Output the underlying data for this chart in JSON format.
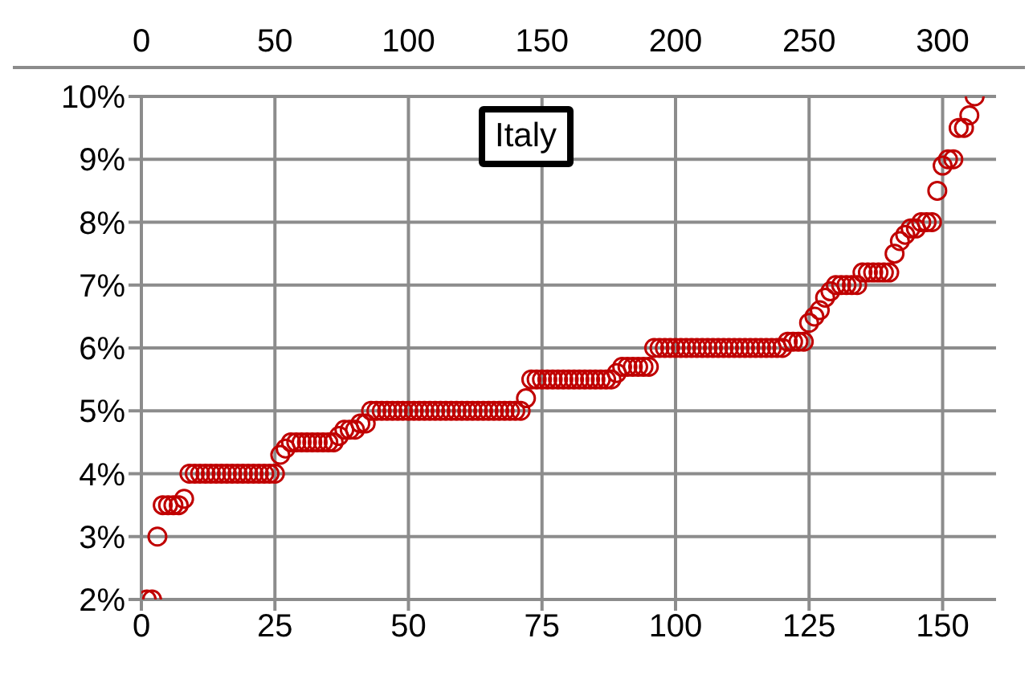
{
  "chart_data": {
    "type": "scatter",
    "title": "Italy",
    "x": [
      1,
      2,
      3,
      4,
      5,
      6,
      7,
      8,
      9,
      10,
      11,
      12,
      13,
      14,
      15,
      16,
      17,
      18,
      19,
      20,
      21,
      22,
      23,
      24,
      25,
      26,
      27,
      28,
      29,
      30,
      31,
      32,
      33,
      34,
      35,
      36,
      37,
      38,
      39,
      40,
      41,
      42,
      43,
      44,
      45,
      46,
      47,
      48,
      49,
      50,
      51,
      52,
      53,
      54,
      55,
      56,
      57,
      58,
      59,
      60,
      61,
      62,
      63,
      64,
      65,
      66,
      67,
      68,
      69,
      70,
      71,
      72,
      73,
      74,
      75,
      76,
      77,
      78,
      79,
      80,
      81,
      82,
      83,
      84,
      85,
      86,
      87,
      88,
      89,
      90,
      91,
      92,
      93,
      94,
      95,
      96,
      97,
      98,
      99,
      100,
      101,
      102,
      103,
      104,
      105,
      106,
      107,
      108,
      109,
      110,
      111,
      112,
      113,
      114,
      115,
      116,
      117,
      118,
      119,
      120,
      121,
      122,
      123,
      124,
      125,
      126,
      127,
      128,
      129,
      130,
      131,
      132,
      133,
      134,
      135,
      136,
      137,
      138,
      139,
      140,
      141,
      142,
      143,
      144,
      145,
      146,
      147,
      148,
      149,
      150,
      151,
      152,
      153,
      154,
      155,
      156
    ],
    "series": [
      {
        "color": "#c00000",
        "values": [
          2,
          2,
          3,
          3.5,
          3.5,
          3.5,
          3.5,
          3.6,
          4,
          4,
          4,
          4,
          4,
          4,
          4,
          4,
          4,
          4,
          4,
          4,
          4,
          4,
          4,
          4,
          4,
          4.3,
          4.4,
          4.5,
          4.5,
          4.5,
          4.5,
          4.5,
          4.5,
          4.5,
          4.5,
          4.5,
          4.6,
          4.7,
          4.7,
          4.7,
          4.8,
          4.8,
          5,
          5,
          5,
          5,
          5,
          5,
          5,
          5,
          5,
          5,
          5,
          5,
          5,
          5,
          5,
          5,
          5,
          5,
          5,
          5,
          5,
          5,
          5,
          5,
          5,
          5,
          5,
          5,
          5,
          5.2,
          5.5,
          5.5,
          5.5,
          5.5,
          5.5,
          5.5,
          5.5,
          5.5,
          5.5,
          5.5,
          5.5,
          5.5,
          5.5,
          5.5,
          5.5,
          5.5,
          5.6,
          5.7,
          5.7,
          5.7,
          5.7,
          5.7,
          5.7,
          6,
          6,
          6,
          6,
          6,
          6,
          6,
          6,
          6,
          6,
          6,
          6,
          6,
          6,
          6,
          6,
          6,
          6,
          6,
          6,
          6,
          6,
          6,
          6,
          6,
          6.1,
          6.1,
          6.1,
          6.1,
          6.4,
          6.5,
          6.6,
          6.8,
          6.9,
          7,
          7,
          7,
          7,
          7,
          7.2,
          7.2,
          7.2,
          7.2,
          7.2,
          7.2,
          7.5,
          7.7,
          7.8,
          7.9,
          7.9,
          8,
          8,
          8,
          8.5,
          8.9,
          9,
          9,
          9.5,
          9.5,
          9.7,
          10
        ]
      }
    ],
    "xlim": [
      0,
      160
    ],
    "xticks": [
      0,
      25,
      50,
      75,
      100,
      125,
      150
    ],
    "x2lim": [
      0,
      320
    ],
    "x2ticks": [
      0,
      50,
      100,
      150,
      200,
      250,
      300
    ],
    "ylim": [
      2,
      10
    ],
    "yticks": [
      {
        "value": 2,
        "label": "2%"
      },
      {
        "value": 3,
        "label": "3%"
      },
      {
        "value": 4,
        "label": "4%"
      },
      {
        "value": 5,
        "label": "5%"
      },
      {
        "value": 6,
        "label": "6%"
      },
      {
        "value": 7,
        "label": "7%"
      },
      {
        "value": 8,
        "label": "8%"
      },
      {
        "value": 9,
        "label": "9%"
      },
      {
        "value": 10,
        "label": "10%"
      }
    ],
    "grid": true,
    "marker": "circle",
    "legend": false
  }
}
